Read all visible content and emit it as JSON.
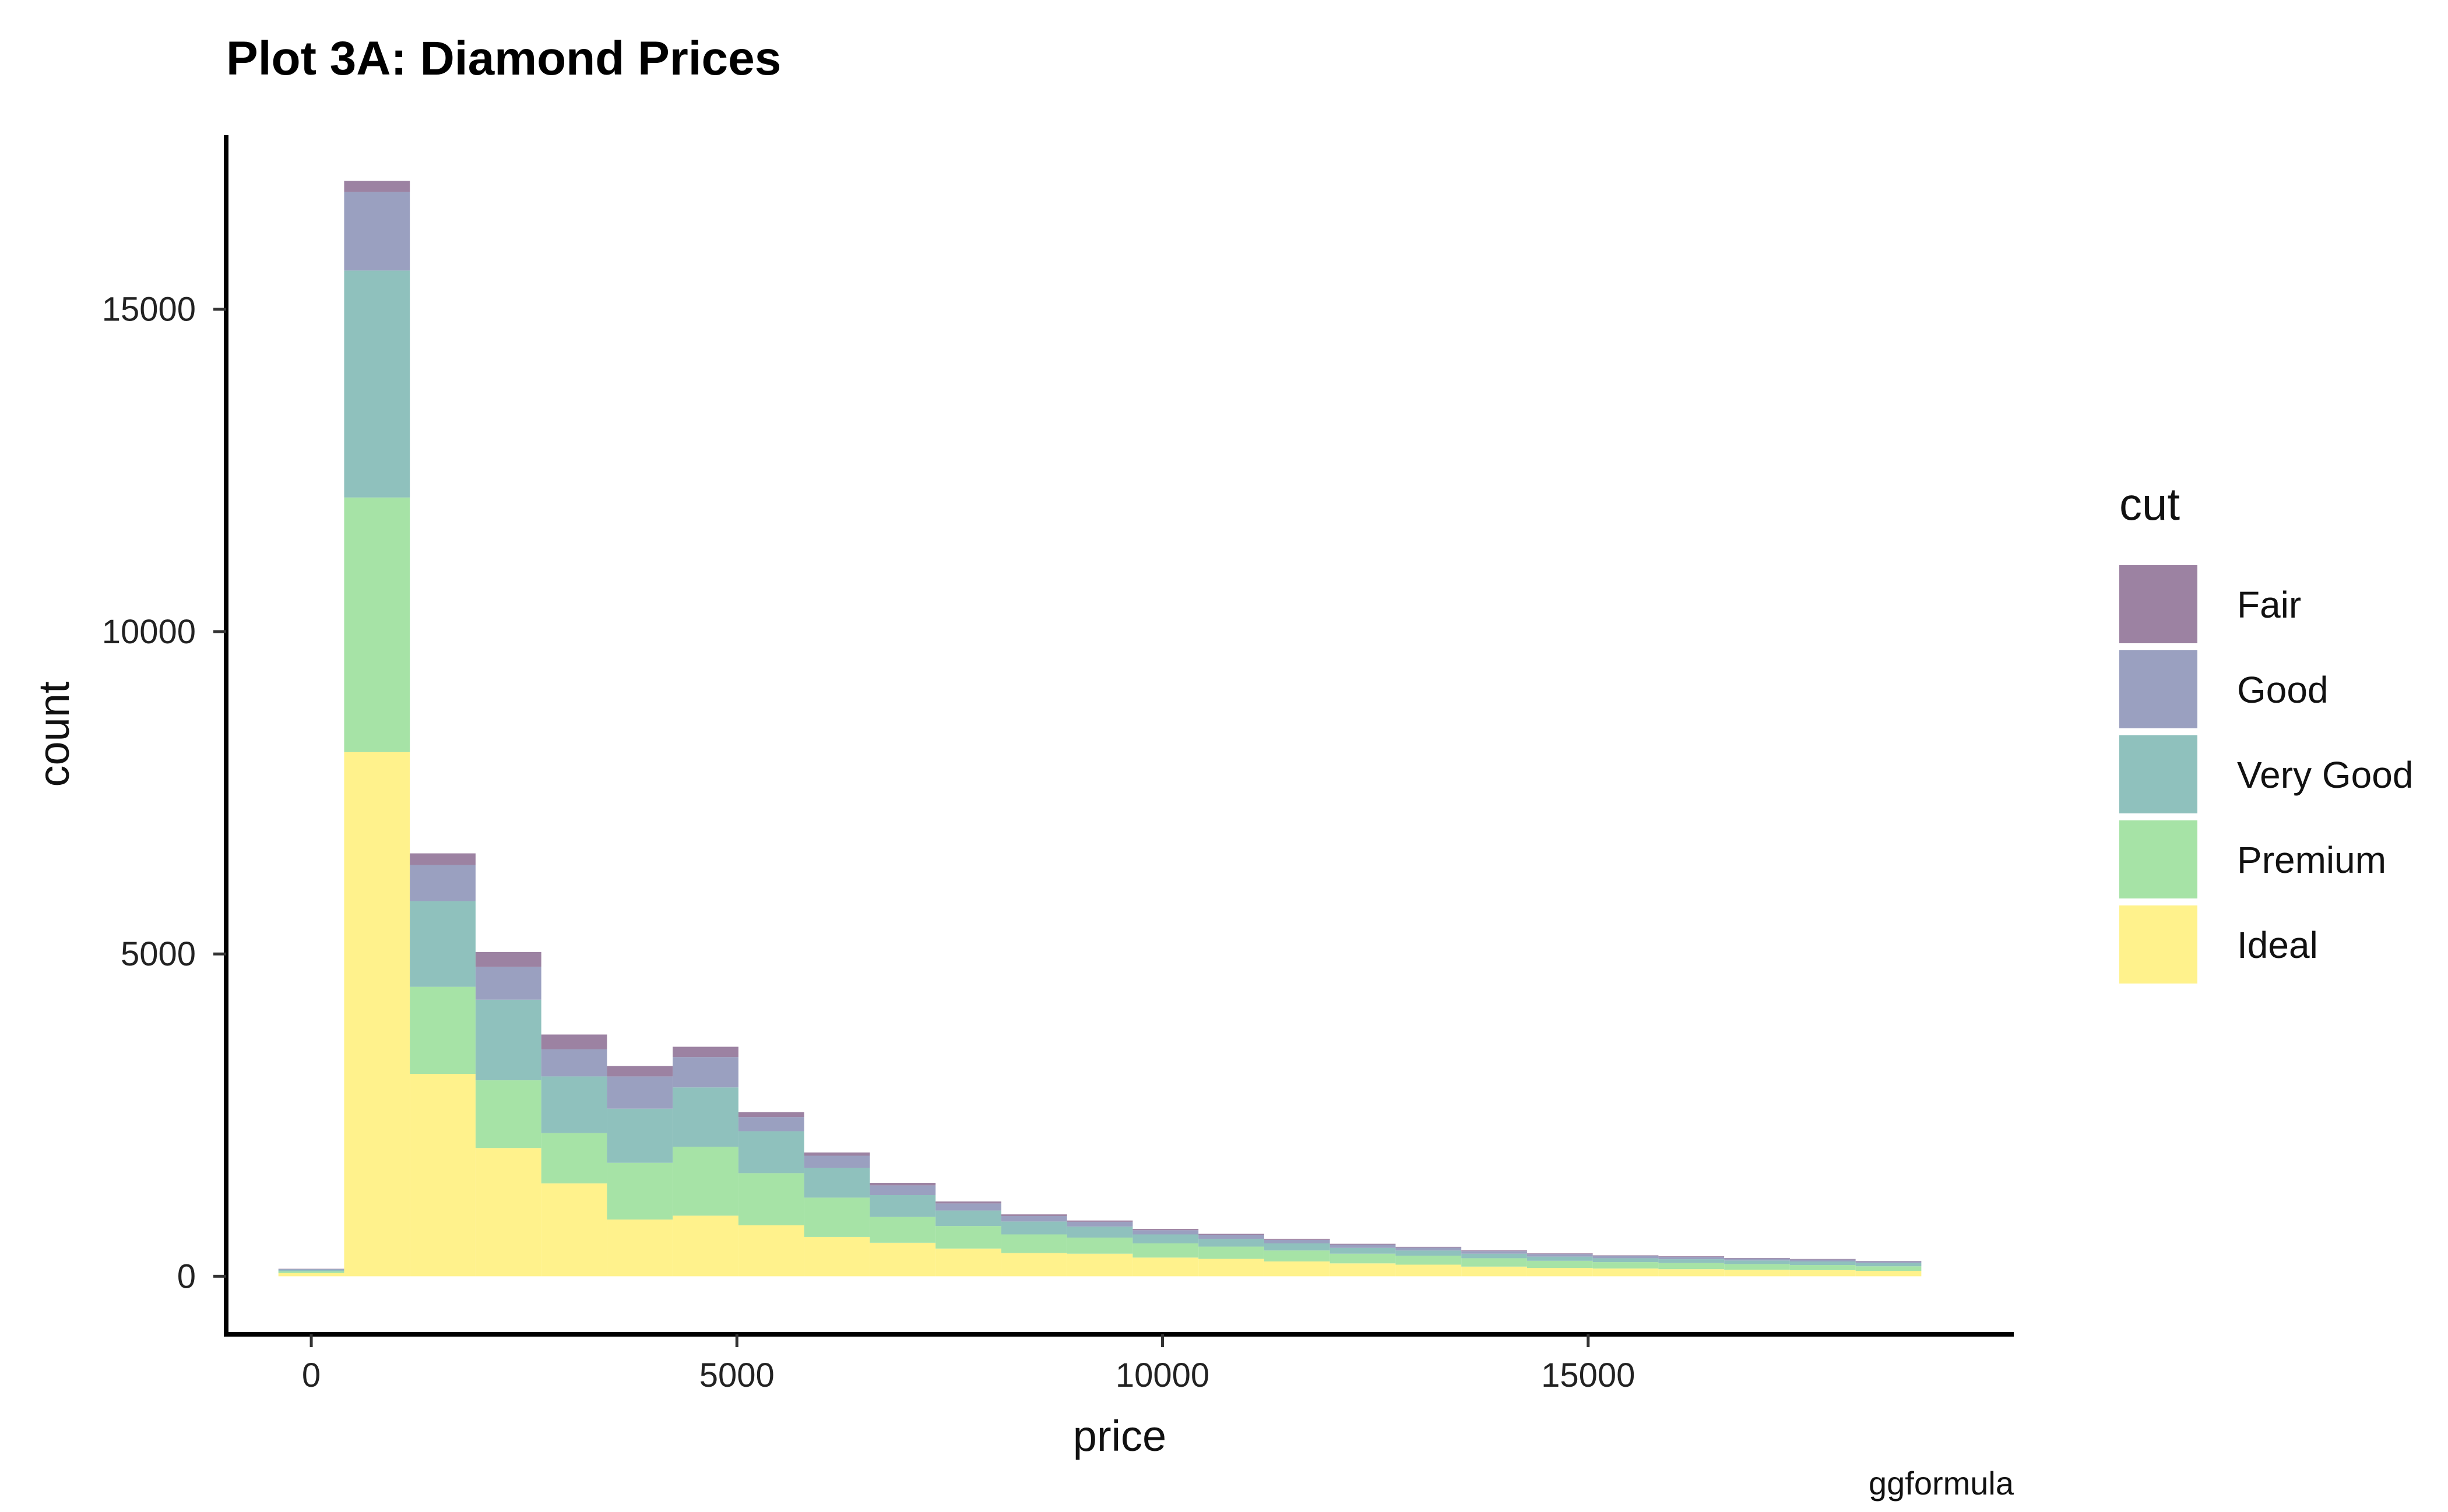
{
  "chart_data": {
    "type": "bar",
    "stacked": true,
    "title": "Plot 3A: Diamond Prices",
    "xlabel": "price",
    "ylabel": "count",
    "caption": "ggformula",
    "legend_title": "cut",
    "legend_position": "right",
    "grid": false,
    "bin_width": 772,
    "xlim": [
      -1000,
      20000
    ],
    "ylim": [
      -900,
      17700
    ],
    "xticks": [
      0,
      5000,
      10000,
      15000
    ],
    "yticks": [
      0,
      5000,
      10000,
      15000
    ],
    "bin_left_edges": [
      -386,
      386,
      1158,
      1930,
      2702,
      3474,
      4246,
      5018,
      5790,
      6562,
      7334,
      8106,
      8878,
      9650,
      10422,
      11194,
      11966,
      12738,
      13510,
      14282,
      15054,
      15826,
      16598,
      17370,
      18142
    ],
    "series": [
      {
        "name": "Ideal",
        "color": "#fff28c",
        "values": [
          50,
          8130,
          3140,
          1990,
          1440,
          880,
          940,
          790,
          610,
          520,
          430,
          360,
          350,
          290,
          270,
          230,
          200,
          180,
          150,
          130,
          120,
          110,
          100,
          95,
          85
        ]
      },
      {
        "name": "Premium",
        "color": "#a6e3a6",
        "values": [
          25,
          3950,
          1350,
          1050,
          780,
          880,
          1070,
          810,
          610,
          400,
          350,
          290,
          250,
          220,
          190,
          170,
          150,
          140,
          130,
          110,
          100,
          95,
          90,
          80,
          70
        ]
      },
      {
        "name": "Very Good",
        "color": "#8fc1bd",
        "values": [
          25,
          3520,
          1330,
          1250,
          880,
          840,
          920,
          650,
          460,
          340,
          240,
          200,
          170,
          140,
          120,
          110,
          90,
          80,
          70,
          65,
          60,
          60,
          55,
          55,
          50
        ]
      },
      {
        "name": "Good",
        "color": "#9aa0c0",
        "values": [
          12,
          1220,
          560,
          510,
          420,
          500,
          470,
          220,
          190,
          150,
          110,
          85,
          75,
          65,
          60,
          55,
          50,
          45,
          40,
          40,
          35,
          35,
          30,
          30,
          25
        ]
      },
      {
        "name": "Fair",
        "color": "#9c82a2",
        "values": [
          4,
          170,
          180,
          230,
          230,
          160,
          160,
          75,
          50,
          40,
          30,
          25,
          20,
          20,
          18,
          16,
          14,
          12,
          12,
          10,
          10,
          10,
          8,
          8,
          7
        ]
      }
    ]
  }
}
